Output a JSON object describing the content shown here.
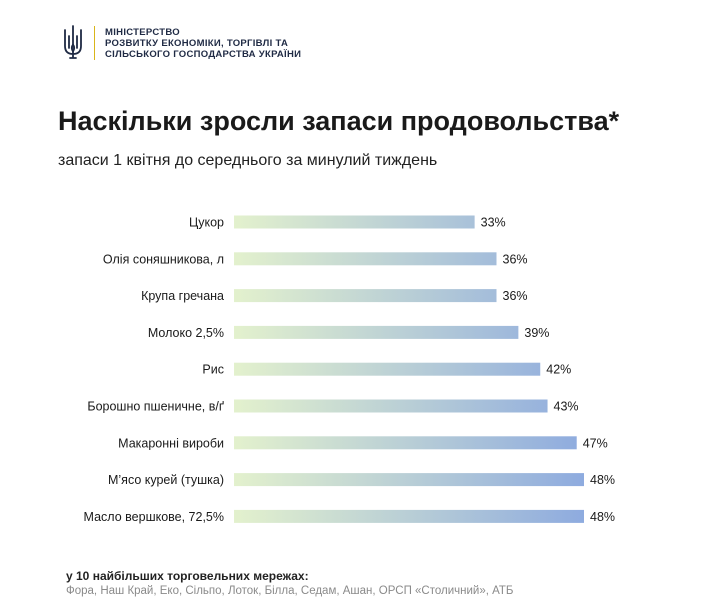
{
  "header": {
    "ministry_lines": [
      "МІНІСТЕРСТВО",
      "РОЗВИТКУ ЕКОНОМІКИ, ТОРГІВЛІ ТА",
      "СІЛЬСЬКОГО ГОСПОДАРСТВА УКРАЇНИ"
    ]
  },
  "colors": {
    "bar_start": "#e3f1cd",
    "bar_end": "#8eabdf",
    "text": "#1a1a1a"
  },
  "chart_data": {
    "type": "bar",
    "orientation": "horizontal",
    "title": "Наскільки зросли запаси продовольства*",
    "subtitle": "запаси 1 квітня до середнього за минулий тиждень",
    "categories": [
      "Цукор",
      "Олія соняшникова, л",
      "Крупа гречана",
      "Молоко 2,5%",
      "Рис",
      "Борошно пшеничне, в/ґ",
      "Макаронні вироби",
      "М’ясо курей (тушка)",
      "Масло вершкове, 72,5%"
    ],
    "values": [
      33,
      36,
      36,
      39,
      42,
      43,
      47,
      48,
      48
    ],
    "value_labels": [
      "33%",
      "36%",
      "36%",
      "39%",
      "42%",
      "43%",
      "47%",
      "48%",
      "48%"
    ],
    "unit": "%",
    "xlim": [
      0,
      48
    ],
    "grid": false,
    "legend": "none"
  },
  "footnote": {
    "heading": "у 10 найбільших торговельних мережах:",
    "chains": "Фора, Наш Край, Еко, Сільпо, Лоток, Білла, Седам, Ашан, ОРСП «Столичний», АТБ"
  }
}
